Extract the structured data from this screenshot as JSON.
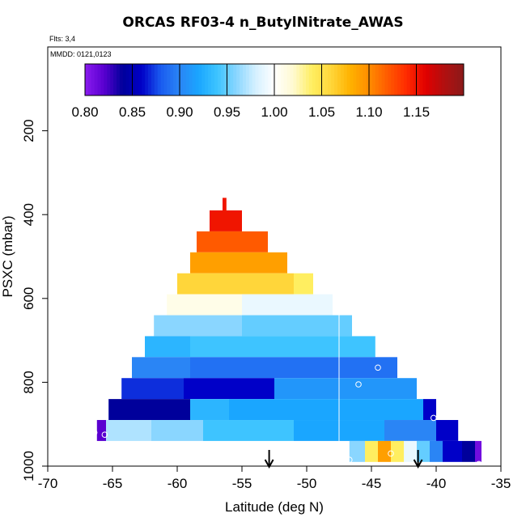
{
  "chart_data": {
    "type": "heatmap",
    "title": "ORCAS RF03-4 n_ButylNitrate_AWAS",
    "flights_note": "Flts: 3,4",
    "date_note": "MMDD: 0121,0123",
    "xlabel": "Latitude (deg N)",
    "ylabel": "PSXC (mbar)",
    "xlim": [
      -70,
      -35
    ],
    "ylim": [
      1000,
      0
    ],
    "x_ticks": [
      -70,
      -65,
      -60,
      -55,
      -50,
      -45,
      -40,
      -35
    ],
    "x_tick_labels": [
      "-70",
      "-65",
      "-60",
      "-55",
      "-50",
      "-45",
      "-40",
      "-35"
    ],
    "y_ticks": [
      200,
      400,
      600,
      800,
      1000
    ],
    "y_tick_labels": [
      "200",
      "400",
      "600",
      "800",
      "1000"
    ],
    "colorbar": {
      "min": 0.8,
      "max": 1.2,
      "ticks": [
        0.8,
        0.85,
        0.9,
        0.95,
        1.0,
        1.05,
        1.1,
        1.15
      ],
      "tick_labels": [
        "0.80",
        "0.85",
        "0.90",
        "0.95",
        "1.00",
        "1.05",
        "1.10",
        "1.15"
      ]
    },
    "colors": {
      "0.80": "#8a1bef",
      "0.82": "#5a00d0",
      "0.84": "#00009b",
      "0.86": "#0000c8",
      "0.88": "#1a5cf0",
      "0.90": "#2a85f5",
      "0.92": "#1aa6ff",
      "0.94": "#3ec4ff",
      "0.96": "#8ad6ff",
      "0.98": "#d4f0ff",
      "1.00": "#ffffff",
      "1.02": "#fffad0",
      "1.04": "#ffee60",
      "1.06": "#ffd63a",
      "1.08": "#ffb200",
      "1.10": "#ff8c00",
      "1.12": "#ff5a00",
      "1.14": "#ff2a00",
      "1.16": "#e00000",
      "1.18": "#b01010",
      "1.20": "#8b1a1a"
    },
    "rows": [
      {
        "p_top": 360,
        "p_bot": 390,
        "segments": [
          {
            "x0": -56.5,
            "x1": -56.2,
            "v": 1.15
          }
        ]
      },
      {
        "p_top": 390,
        "p_bot": 440,
        "segments": [
          {
            "x0": -57.5,
            "x1": -55.0,
            "v": 1.15
          }
        ]
      },
      {
        "p_top": 440,
        "p_bot": 490,
        "segments": [
          {
            "x0": -58.5,
            "x1": -53.0,
            "v": 1.12
          }
        ]
      },
      {
        "p_top": 490,
        "p_bot": 540,
        "segments": [
          {
            "x0": -59.0,
            "x1": -51.5,
            "v": 1.09
          }
        ]
      },
      {
        "p_top": 540,
        "p_bot": 590,
        "segments": [
          {
            "x0": -60.0,
            "x1": -51.0,
            "v": 1.06
          },
          {
            "x0": -51.0,
            "x1": -49.5,
            "v": 1.04
          }
        ]
      },
      {
        "p_top": 590,
        "p_bot": 640,
        "segments": [
          {
            "x0": -60.8,
            "x1": -55.0,
            "v": 1.01
          },
          {
            "x0": -55.0,
            "x1": -48.0,
            "v": 0.99
          }
        ]
      },
      {
        "p_top": 640,
        "p_bot": 690,
        "segments": [
          {
            "x0": -61.8,
            "x1": -55.0,
            "v": 0.96
          },
          {
            "x0": -55.0,
            "x1": -46.5,
            "v": 0.95
          }
        ]
      },
      {
        "p_top": 690,
        "p_bot": 740,
        "segments": [
          {
            "x0": -62.5,
            "x1": -59.0,
            "v": 0.93
          },
          {
            "x0": -59.0,
            "x1": -44.7,
            "v": 0.94
          }
        ]
      },
      {
        "p_top": 740,
        "p_bot": 790,
        "segments": [
          {
            "x0": -63.5,
            "x1": -59.0,
            "v": 0.9
          },
          {
            "x0": -59.0,
            "x1": -43.0,
            "v": 0.89
          }
        ]
      },
      {
        "p_top": 790,
        "p_bot": 840,
        "segments": [
          {
            "x0": -64.3,
            "x1": -59.5,
            "v": 0.87
          },
          {
            "x0": -59.5,
            "x1": -52.5,
            "v": 0.86
          },
          {
            "x0": -52.5,
            "x1": -41.5,
            "v": 0.91
          }
        ]
      },
      {
        "p_top": 840,
        "p_bot": 890,
        "segments": [
          {
            "x0": -65.3,
            "x1": -59.0,
            "v": 0.84
          },
          {
            "x0": -59.0,
            "x1": -56.0,
            "v": 0.93
          },
          {
            "x0": -56.0,
            "x1": -41.0,
            "v": 0.92
          },
          {
            "x0": -41.0,
            "x1": -40.0,
            "v": 0.86
          }
        ]
      },
      {
        "p_top": 890,
        "p_bot": 940,
        "segments": [
          {
            "x0": -66.2,
            "x1": -65.5,
            "v": 0.82
          },
          {
            "x0": -65.5,
            "x1": -62.0,
            "v": 0.97
          },
          {
            "x0": -62.0,
            "x1": -58.0,
            "v": 0.96
          },
          {
            "x0": -58.0,
            "x1": -51.0,
            "v": 0.94
          },
          {
            "x0": -51.0,
            "x1": -44.0,
            "v": 0.92
          },
          {
            "x0": -44.0,
            "x1": -40.0,
            "v": 0.9
          },
          {
            "x0": -40.0,
            "x1": -38.3,
            "v": 0.86
          }
        ]
      },
      {
        "p_top": 940,
        "p_bot": 990,
        "segments": [
          {
            "x0": -46.7,
            "x1": -45.5,
            "v": 0.96
          },
          {
            "x0": -45.5,
            "x1": -44.5,
            "v": 1.04
          },
          {
            "x0": -44.5,
            "x1": -43.5,
            "v": 1.09
          },
          {
            "x0": -43.5,
            "x1": -42.5,
            "v": 1.04
          },
          {
            "x0": -42.5,
            "x1": -41.5,
            "v": 0.99
          },
          {
            "x0": -41.5,
            "x1": -40.5,
            "v": 0.95
          },
          {
            "x0": -40.5,
            "x1": -39.5,
            "v": 0.9
          },
          {
            "x0": -39.5,
            "x1": -38.0,
            "v": 0.86
          },
          {
            "x0": -38.0,
            "x1": -37.0,
            "v": 0.84
          },
          {
            "x0": -37.0,
            "x1": -36.5,
            "v": 0.81
          }
        ]
      }
    ],
    "vertical_line_x": -47.5,
    "sample_points": [
      {
        "x": -66.4,
        "p": 920
      },
      {
        "x": -65.6,
        "p": 925
      },
      {
        "x": -46.0,
        "p": 805
      },
      {
        "x": -44.5,
        "p": 765
      },
      {
        "x": -40.2,
        "p": 885
      },
      {
        "x": -46.7,
        "p": 985
      },
      {
        "x": -43.5,
        "p": 970
      },
      {
        "x": -36.7,
        "p": 995
      }
    ],
    "arrows_x": [
      -52.9,
      -41.4
    ]
  }
}
